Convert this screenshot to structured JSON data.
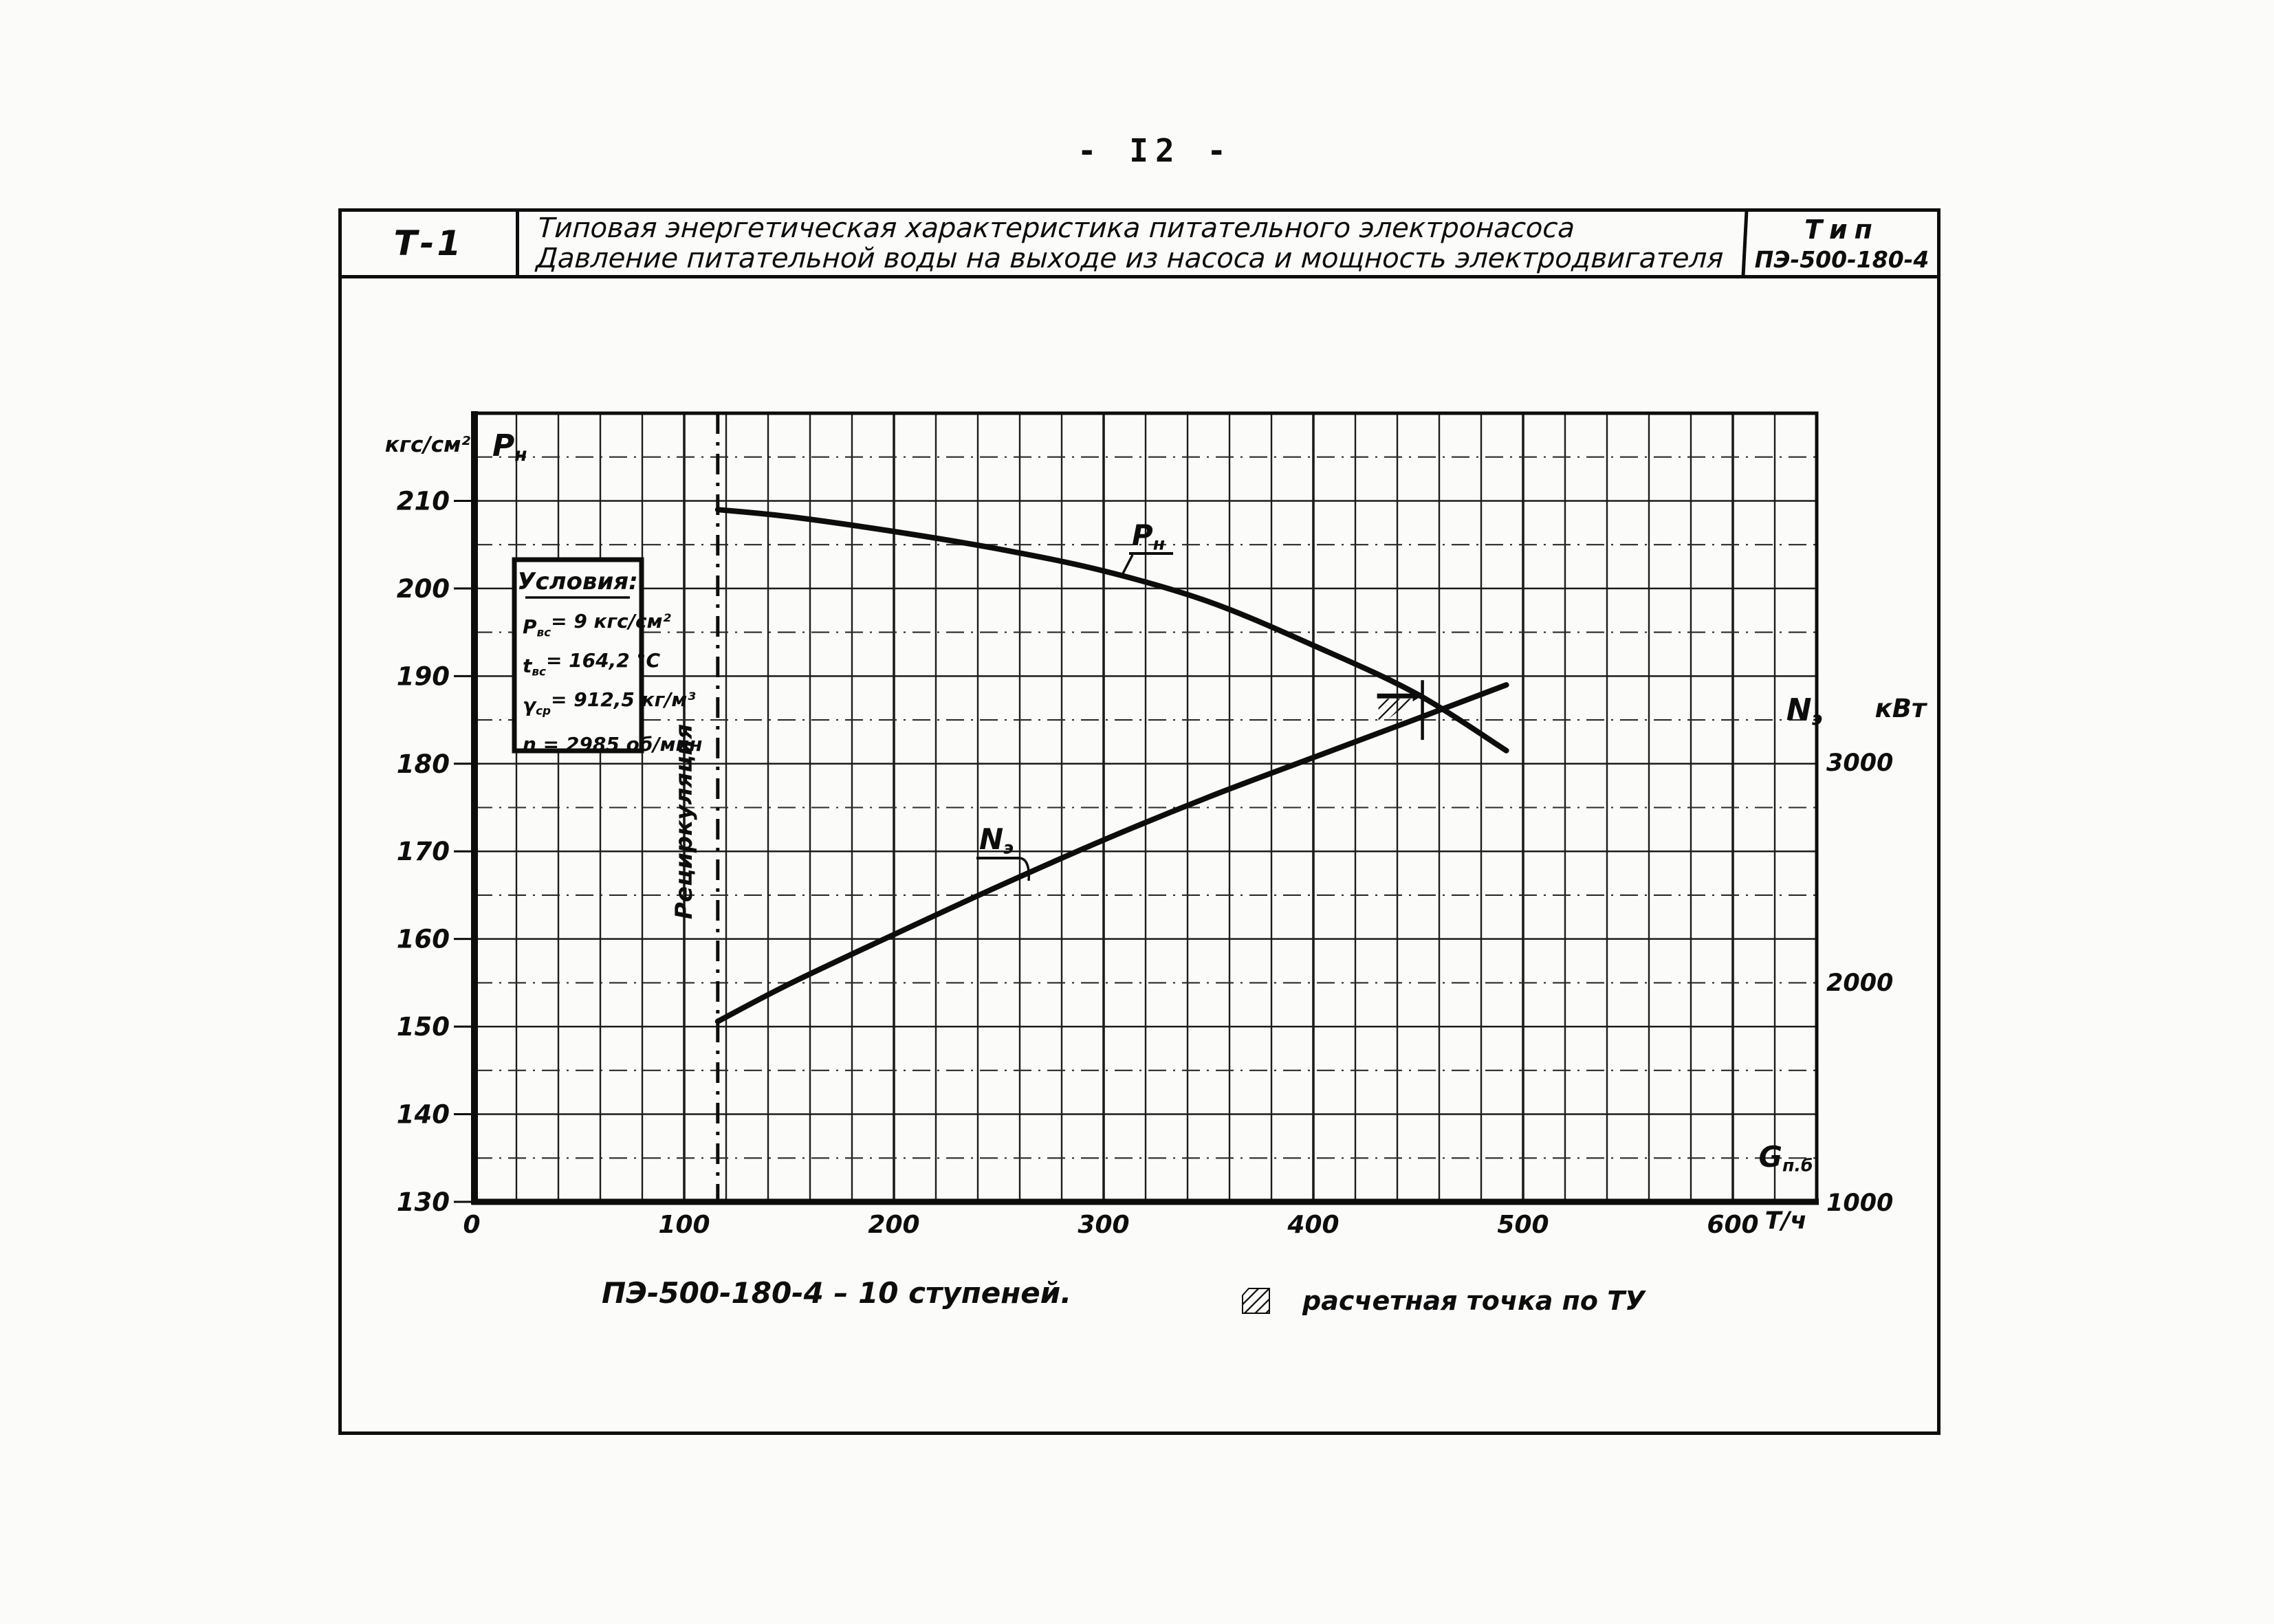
{
  "colors": {
    "ink": "#0d0d0d",
    "paper": "#fbfbf9"
  },
  "page": {
    "number": "- I2 -"
  },
  "title_block": {
    "code": "Т-1",
    "title_line1": "Типовая энергетическая характеристика питательного электронасоса",
    "title_line2": "Давление питательной воды на выходе из насоса и мощность электродвигателя",
    "type_label": "Тип",
    "type_value": "ПЭ-500-180-4"
  },
  "conditions": {
    "heading": "Условия:",
    "lines": [
      "Р{вс}= 9 кгс/см²",
      "t{вс}= 164,2 °С",
      "γ{ср}= 912,5 кг/м³",
      "n = 2985 об/мин"
    ]
  },
  "chart_data": {
    "type": "line",
    "title": "Типовая энергетическая характеристика питательного электронасоса ПЭ-500-180-4",
    "grid": true,
    "x_axis": {
      "title": "G{п.б}",
      "unit": "Т/ч",
      "ticks": [
        0,
        100,
        200,
        300,
        400,
        500,
        600
      ],
      "range": [
        0,
        640
      ],
      "minor_step": 20
    },
    "y_left": {
      "title": "Р{н}",
      "unit": "кгс/см²",
      "ticks": [
        210,
        200,
        190,
        180,
        170,
        160,
        150,
        140,
        130
      ],
      "range": [
        130,
        220
      ],
      "minor_step": 5
    },
    "y_right": {
      "title": "N{э}",
      "unit": "кВт",
      "ticks": [
        3000,
        2000,
        1000
      ],
      "range": [
        1000,
        4585
      ]
    },
    "recirculation_line": {
      "label": "Рециркуляция",
      "x": 116
    },
    "series": [
      {
        "name": "Р{н}",
        "axis": "left",
        "points": [
          [
            116,
            209
          ],
          [
            150,
            208.2
          ],
          [
            200,
            206.5
          ],
          [
            250,
            204.5
          ],
          [
            300,
            202
          ],
          [
            350,
            198.5
          ],
          [
            400,
            193.5
          ],
          [
            449,
            188
          ],
          [
            492,
            181.5
          ]
        ]
      },
      {
        "name": "N{э}",
        "axis": "right",
        "points": [
          [
            116,
            1820
          ],
          [
            150,
            1990
          ],
          [
            200,
            2215
          ],
          [
            250,
            2435
          ],
          [
            300,
            2645
          ],
          [
            350,
            2840
          ],
          [
            400,
            3020
          ],
          [
            449,
            3195
          ],
          [
            492,
            3350
          ]
        ]
      }
    ],
    "design_point": {
      "g": 452,
      "p": 187.5,
      "n": 3200
    }
  },
  "footer": {
    "pump_label": "ПЭ-500-180-4  –  10 ступеней.",
    "legend_text": "расчетная точка по ТУ"
  }
}
